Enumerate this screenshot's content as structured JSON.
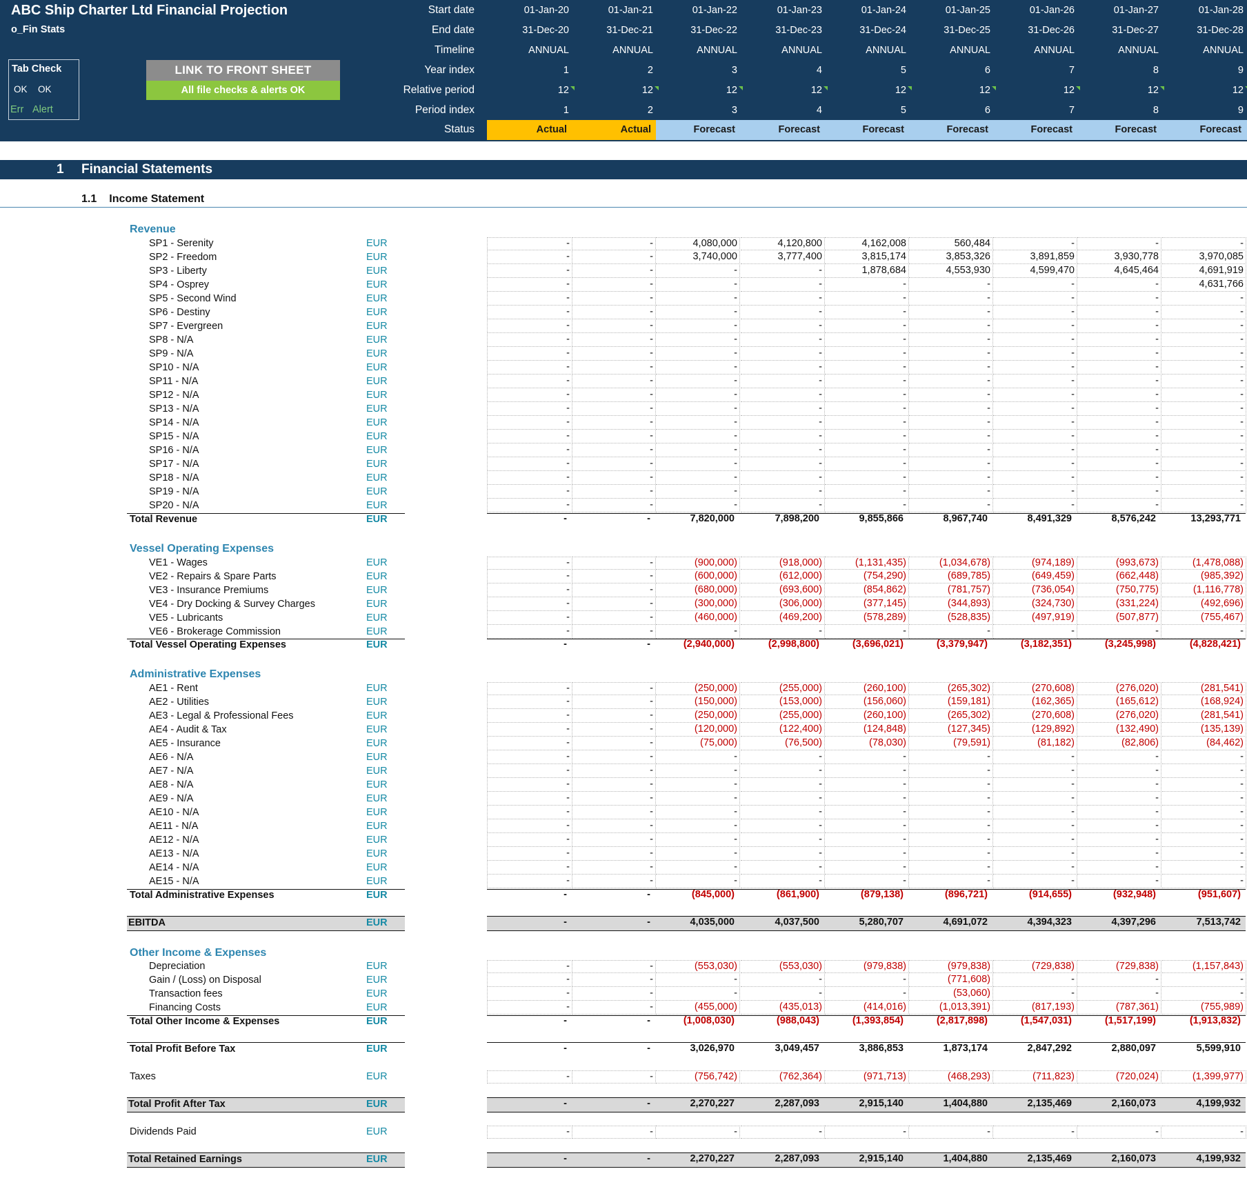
{
  "header": {
    "title": "ABC Ship Charter Ltd Financial Projection",
    "sheet": "o_Fin Stats",
    "tab_check": {
      "label": "Tab Check",
      "ok1": "OK",
      "ok2": "OK",
      "err": "Err",
      "alert": "Alert"
    },
    "link_button": "LINK TO FRONT SHEET",
    "checks_status": "All file checks & alerts OK",
    "row_labels": [
      "Start date",
      "End date",
      "Timeline",
      "Year index",
      "Relative period",
      "Period index",
      "Status"
    ],
    "columns": [
      {
        "start": "01-Jan-20",
        "end": "31-Dec-20",
        "timeline": "ANNUAL",
        "year_index": "1",
        "relative_period": "12",
        "period_index": "1",
        "status": "Actual"
      },
      {
        "start": "01-Jan-21",
        "end": "31-Dec-21",
        "timeline": "ANNUAL",
        "year_index": "2",
        "relative_period": "12",
        "period_index": "2",
        "status": "Actual"
      },
      {
        "start": "01-Jan-22",
        "end": "31-Dec-22",
        "timeline": "ANNUAL",
        "year_index": "3",
        "relative_period": "12",
        "period_index": "3",
        "status": "Forecast"
      },
      {
        "start": "01-Jan-23",
        "end": "31-Dec-23",
        "timeline": "ANNUAL",
        "year_index": "4",
        "relative_period": "12",
        "period_index": "4",
        "status": "Forecast"
      },
      {
        "start": "01-Jan-24",
        "end": "31-Dec-24",
        "timeline": "ANNUAL",
        "year_index": "5",
        "relative_period": "12",
        "period_index": "5",
        "status": "Forecast"
      },
      {
        "start": "01-Jan-25",
        "end": "31-Dec-25",
        "timeline": "ANNUAL",
        "year_index": "6",
        "relative_period": "12",
        "period_index": "6",
        "status": "Forecast"
      },
      {
        "start": "01-Jan-26",
        "end": "31-Dec-26",
        "timeline": "ANNUAL",
        "year_index": "7",
        "relative_period": "12",
        "period_index": "7",
        "status": "Forecast"
      },
      {
        "start": "01-Jan-27",
        "end": "31-Dec-27",
        "timeline": "ANNUAL",
        "year_index": "8",
        "relative_period": "12",
        "period_index": "8",
        "status": "Forecast"
      },
      {
        "start": "01-Jan-28",
        "end": "31-Dec-28",
        "timeline": "ANNUAL",
        "year_index": "9",
        "relative_period": "12",
        "period_index": "9",
        "status": "Forecast"
      }
    ]
  },
  "colors": {
    "banner": "#173c5e",
    "actual": "#ffc000",
    "forecast": "#a9cfee",
    "negative": "#c00000",
    "group_title": "#2e86b0",
    "unit": "#168aa5"
  },
  "section": {
    "number": "1",
    "title": "Financial Statements"
  },
  "subsection": {
    "number": "1.1",
    "title": "Income Statement"
  },
  "groups": {
    "revenue": "Revenue",
    "vessel": "Vessel Operating Expenses",
    "admin": "Administrative Expenses",
    "other": "Other Income & Expenses"
  },
  "rows": [
    {
      "key": "sp1",
      "label": "SP1 - Serenity",
      "unit": "EUR",
      "type": "item",
      "values": [
        "-",
        "-",
        "4,080,000",
        "4,120,800",
        "4,162,008",
        "560,484",
        "-",
        "-",
        "-"
      ]
    },
    {
      "key": "sp2",
      "label": "SP2 - Freedom",
      "unit": "EUR",
      "type": "item",
      "values": [
        "-",
        "-",
        "3,740,000",
        "3,777,400",
        "3,815,174",
        "3,853,326",
        "3,891,859",
        "3,930,778",
        "3,970,085"
      ]
    },
    {
      "key": "sp3",
      "label": "SP3 - Liberty",
      "unit": "EUR",
      "type": "item",
      "values": [
        "-",
        "-",
        "-",
        "-",
        "1,878,684",
        "4,553,930",
        "4,599,470",
        "4,645,464",
        "4,691,919"
      ]
    },
    {
      "key": "sp4",
      "label": "SP4 - Osprey",
      "unit": "EUR",
      "type": "item",
      "values": [
        "-",
        "-",
        "-",
        "-",
        "-",
        "-",
        "-",
        "-",
        "4,631,766"
      ]
    },
    {
      "key": "sp5",
      "label": "SP5 - Second Wind",
      "unit": "EUR",
      "type": "item",
      "values": [
        "-",
        "-",
        "-",
        "-",
        "-",
        "-",
        "-",
        "-",
        "-"
      ]
    },
    {
      "key": "sp6",
      "label": "SP6 - Destiny",
      "unit": "EUR",
      "type": "item",
      "values": [
        "-",
        "-",
        "-",
        "-",
        "-",
        "-",
        "-",
        "-",
        "-"
      ]
    },
    {
      "key": "sp7",
      "label": "SP7 - Evergreen",
      "unit": "EUR",
      "type": "item",
      "values": [
        "-",
        "-",
        "-",
        "-",
        "-",
        "-",
        "-",
        "-",
        "-"
      ]
    },
    {
      "key": "sp8",
      "label": "SP8 - N/A",
      "unit": "EUR",
      "type": "item",
      "values": [
        "-",
        "-",
        "-",
        "-",
        "-",
        "-",
        "-",
        "-",
        "-"
      ]
    },
    {
      "key": "sp9",
      "label": "SP9 - N/A",
      "unit": "EUR",
      "type": "item",
      "values": [
        "-",
        "-",
        "-",
        "-",
        "-",
        "-",
        "-",
        "-",
        "-"
      ]
    },
    {
      "key": "sp10",
      "label": "SP10 - N/A",
      "unit": "EUR",
      "type": "item",
      "values": [
        "-",
        "-",
        "-",
        "-",
        "-",
        "-",
        "-",
        "-",
        "-"
      ]
    },
    {
      "key": "sp11",
      "label": "SP11 - N/A",
      "unit": "EUR",
      "type": "item",
      "values": [
        "-",
        "-",
        "-",
        "-",
        "-",
        "-",
        "-",
        "-",
        "-"
      ]
    },
    {
      "key": "sp12",
      "label": "SP12 - N/A",
      "unit": "EUR",
      "type": "item",
      "values": [
        "-",
        "-",
        "-",
        "-",
        "-",
        "-",
        "-",
        "-",
        "-"
      ]
    },
    {
      "key": "sp13",
      "label": "SP13 - N/A",
      "unit": "EUR",
      "type": "item",
      "values": [
        "-",
        "-",
        "-",
        "-",
        "-",
        "-",
        "-",
        "-",
        "-"
      ]
    },
    {
      "key": "sp14",
      "label": "SP14 - N/A",
      "unit": "EUR",
      "type": "item",
      "values": [
        "-",
        "-",
        "-",
        "-",
        "-",
        "-",
        "-",
        "-",
        "-"
      ]
    },
    {
      "key": "sp15",
      "label": "SP15 - N/A",
      "unit": "EUR",
      "type": "item",
      "values": [
        "-",
        "-",
        "-",
        "-",
        "-",
        "-",
        "-",
        "-",
        "-"
      ]
    },
    {
      "key": "sp16",
      "label": "SP16 - N/A",
      "unit": "EUR",
      "type": "item",
      "values": [
        "-",
        "-",
        "-",
        "-",
        "-",
        "-",
        "-",
        "-",
        "-"
      ]
    },
    {
      "key": "sp17",
      "label": "SP17 - N/A",
      "unit": "EUR",
      "type": "item",
      "values": [
        "-",
        "-",
        "-",
        "-",
        "-",
        "-",
        "-",
        "-",
        "-"
      ]
    },
    {
      "key": "sp18",
      "label": "SP18 - N/A",
      "unit": "EUR",
      "type": "item",
      "values": [
        "-",
        "-",
        "-",
        "-",
        "-",
        "-",
        "-",
        "-",
        "-"
      ]
    },
    {
      "key": "sp19",
      "label": "SP19 - N/A",
      "unit": "EUR",
      "type": "item",
      "values": [
        "-",
        "-",
        "-",
        "-",
        "-",
        "-",
        "-",
        "-",
        "-"
      ]
    },
    {
      "key": "sp20",
      "label": "SP20 - N/A",
      "unit": "EUR",
      "type": "item",
      "values": [
        "-",
        "-",
        "-",
        "-",
        "-",
        "-",
        "-",
        "-",
        "-"
      ]
    },
    {
      "key": "total_revenue",
      "label": "Total Revenue",
      "unit": "EUR",
      "type": "total",
      "values": [
        "-",
        "-",
        "7,820,000",
        "7,898,200",
        "9,855,866",
        "8,967,740",
        "8,491,329",
        "8,576,242",
        "13,293,771"
      ]
    },
    {
      "key": "ve1",
      "label": "VE1 - Wages",
      "unit": "EUR",
      "type": "item",
      "values": [
        "-",
        "-",
        "(900,000)",
        "(918,000)",
        "(1,131,435)",
        "(1,034,678)",
        "(974,189)",
        "(993,673)",
        "(1,478,088)"
      ]
    },
    {
      "key": "ve2",
      "label": "VE2 - Repairs & Spare Parts",
      "unit": "EUR",
      "type": "item",
      "values": [
        "-",
        "-",
        "(600,000)",
        "(612,000)",
        "(754,290)",
        "(689,785)",
        "(649,459)",
        "(662,448)",
        "(985,392)"
      ]
    },
    {
      "key": "ve3",
      "label": "VE3 - Insurance Premiums",
      "unit": "EUR",
      "type": "item",
      "values": [
        "-",
        "-",
        "(680,000)",
        "(693,600)",
        "(854,862)",
        "(781,757)",
        "(736,054)",
        "(750,775)",
        "(1,116,778)"
      ]
    },
    {
      "key": "ve4",
      "label": "VE4 - Dry Docking & Survey Charges",
      "unit": "EUR",
      "type": "item",
      "values": [
        "-",
        "-",
        "(300,000)",
        "(306,000)",
        "(377,145)",
        "(344,893)",
        "(324,730)",
        "(331,224)",
        "(492,696)"
      ]
    },
    {
      "key": "ve5",
      "label": "VE5 - Lubricants",
      "unit": "EUR",
      "type": "item",
      "values": [
        "-",
        "-",
        "(460,000)",
        "(469,200)",
        "(578,289)",
        "(528,835)",
        "(497,919)",
        "(507,877)",
        "(755,467)"
      ]
    },
    {
      "key": "ve6",
      "label": "VE6 - Brokerage Commission",
      "unit": "EUR",
      "type": "item",
      "values": [
        "-",
        "-",
        "-",
        "-",
        "-",
        "-",
        "-",
        "-",
        "-"
      ]
    },
    {
      "key": "total_vessel",
      "label": "Total Vessel Operating Expenses",
      "unit": "EUR",
      "type": "total",
      "values": [
        "-",
        "-",
        "(2,940,000)",
        "(2,998,800)",
        "(3,696,021)",
        "(3,379,947)",
        "(3,182,351)",
        "(3,245,998)",
        "(4,828,421)"
      ]
    },
    {
      "key": "ae1",
      "label": "AE1 - Rent",
      "unit": "EUR",
      "type": "item",
      "values": [
        "-",
        "-",
        "(250,000)",
        "(255,000)",
        "(260,100)",
        "(265,302)",
        "(270,608)",
        "(276,020)",
        "(281,541)"
      ]
    },
    {
      "key": "ae2",
      "label": "AE2 - Utilities",
      "unit": "EUR",
      "type": "item",
      "values": [
        "-",
        "-",
        "(150,000)",
        "(153,000)",
        "(156,060)",
        "(159,181)",
        "(162,365)",
        "(165,612)",
        "(168,924)"
      ]
    },
    {
      "key": "ae3",
      "label": "AE3 - Legal & Professional Fees",
      "unit": "EUR",
      "type": "item",
      "values": [
        "-",
        "-",
        "(250,000)",
        "(255,000)",
        "(260,100)",
        "(265,302)",
        "(270,608)",
        "(276,020)",
        "(281,541)"
      ]
    },
    {
      "key": "ae4",
      "label": "AE4 - Audit & Tax",
      "unit": "EUR",
      "type": "item",
      "values": [
        "-",
        "-",
        "(120,000)",
        "(122,400)",
        "(124,848)",
        "(127,345)",
        "(129,892)",
        "(132,490)",
        "(135,139)"
      ]
    },
    {
      "key": "ae5",
      "label": "AE5 - Insurance",
      "unit": "EUR",
      "type": "item",
      "values": [
        "-",
        "-",
        "(75,000)",
        "(76,500)",
        "(78,030)",
        "(79,591)",
        "(81,182)",
        "(82,806)",
        "(84,462)"
      ]
    },
    {
      "key": "ae6",
      "label": "AE6 - N/A",
      "unit": "EUR",
      "type": "item",
      "values": [
        "-",
        "-",
        "-",
        "-",
        "-",
        "-",
        "-",
        "-",
        "-"
      ]
    },
    {
      "key": "ae7",
      "label": "AE7 - N/A",
      "unit": "EUR",
      "type": "item",
      "values": [
        "-",
        "-",
        "-",
        "-",
        "-",
        "-",
        "-",
        "-",
        "-"
      ]
    },
    {
      "key": "ae8",
      "label": "AE8 - N/A",
      "unit": "EUR",
      "type": "item",
      "values": [
        "-",
        "-",
        "-",
        "-",
        "-",
        "-",
        "-",
        "-",
        "-"
      ]
    },
    {
      "key": "ae9",
      "label": "AE9 - N/A",
      "unit": "EUR",
      "type": "item",
      "values": [
        "-",
        "-",
        "-",
        "-",
        "-",
        "-",
        "-",
        "-",
        "-"
      ]
    },
    {
      "key": "ae10",
      "label": "AE10 - N/A",
      "unit": "EUR",
      "type": "item",
      "values": [
        "-",
        "-",
        "-",
        "-",
        "-",
        "-",
        "-",
        "-",
        "-"
      ]
    },
    {
      "key": "ae11",
      "label": "AE11 - N/A",
      "unit": "EUR",
      "type": "item",
      "values": [
        "-",
        "-",
        "-",
        "-",
        "-",
        "-",
        "-",
        "-",
        "-"
      ]
    },
    {
      "key": "ae12",
      "label": "AE12 - N/A",
      "unit": "EUR",
      "type": "item",
      "values": [
        "-",
        "-",
        "-",
        "-",
        "-",
        "-",
        "-",
        "-",
        "-"
      ]
    },
    {
      "key": "ae13",
      "label": "AE13 - N/A",
      "unit": "EUR",
      "type": "item",
      "values": [
        "-",
        "-",
        "-",
        "-",
        "-",
        "-",
        "-",
        "-",
        "-"
      ]
    },
    {
      "key": "ae14",
      "label": "AE14 - N/A",
      "unit": "EUR",
      "type": "item",
      "values": [
        "-",
        "-",
        "-",
        "-",
        "-",
        "-",
        "-",
        "-",
        "-"
      ]
    },
    {
      "key": "ae15",
      "label": "AE15 - N/A",
      "unit": "EUR",
      "type": "item",
      "values": [
        "-",
        "-",
        "-",
        "-",
        "-",
        "-",
        "-",
        "-",
        "-"
      ]
    },
    {
      "key": "total_admin",
      "label": "Total Administrative Expenses",
      "unit": "EUR",
      "type": "total",
      "values": [
        "-",
        "-",
        "(845,000)",
        "(861,900)",
        "(879,138)",
        "(896,721)",
        "(914,655)",
        "(932,948)",
        "(951,607)"
      ]
    },
    {
      "key": "ebitda",
      "label": "EBITDA",
      "unit": "EUR",
      "type": "shaded",
      "values": [
        "-",
        "-",
        "4,035,000",
        "4,037,500",
        "5,280,707",
        "4,691,072",
        "4,394,323",
        "4,397,296",
        "7,513,742"
      ]
    },
    {
      "key": "depreciation",
      "label": "Depreciation",
      "unit": "EUR",
      "type": "item",
      "values": [
        "-",
        "-",
        "(553,030)",
        "(553,030)",
        "(979,838)",
        "(979,838)",
        "(729,838)",
        "(729,838)",
        "(1,157,843)"
      ]
    },
    {
      "key": "gain_loss",
      "label": "Gain / (Loss) on Disposal",
      "unit": "EUR",
      "type": "item",
      "values": [
        "-",
        "-",
        "-",
        "-",
        "-",
        "(771,608)",
        "-",
        "-",
        "-"
      ]
    },
    {
      "key": "transaction_fees",
      "label": "Transaction fees",
      "unit": "EUR",
      "type": "item",
      "values": [
        "-",
        "-",
        "-",
        "-",
        "-",
        "(53,060)",
        "-",
        "-",
        "-"
      ]
    },
    {
      "key": "financing_costs",
      "label": "Financing Costs",
      "unit": "EUR",
      "type": "item",
      "values": [
        "-",
        "-",
        "(455,000)",
        "(435,013)",
        "(414,016)",
        "(1,013,391)",
        "(817,193)",
        "(787,361)",
        "(755,989)"
      ]
    },
    {
      "key": "total_other",
      "label": "Total Other Income & Expenses",
      "unit": "EUR",
      "type": "total",
      "values": [
        "-",
        "-",
        "(1,008,030)",
        "(988,043)",
        "(1,393,854)",
        "(2,817,898)",
        "(1,547,031)",
        "(1,517,199)",
        "(1,913,832)"
      ]
    },
    {
      "key": "pbt",
      "label": "Total Profit Before Tax",
      "unit": "EUR",
      "type": "total",
      "values": [
        "-",
        "-",
        "3,026,970",
        "3,049,457",
        "3,886,853",
        "1,873,174",
        "2,847,292",
        "2,880,097",
        "5,599,910"
      ]
    },
    {
      "key": "taxes",
      "label": "Taxes",
      "unit": "EUR",
      "type": "main",
      "values": [
        "-",
        "-",
        "(756,742)",
        "(762,364)",
        "(971,713)",
        "(468,293)",
        "(711,823)",
        "(720,024)",
        "(1,399,977)"
      ]
    },
    {
      "key": "pat",
      "label": "Total Profit After Tax",
      "unit": "EUR",
      "type": "shaded",
      "values": [
        "-",
        "-",
        "2,270,227",
        "2,287,093",
        "2,915,140",
        "1,404,880",
        "2,135,469",
        "2,160,073",
        "4,199,932"
      ]
    },
    {
      "key": "dividends",
      "label": "Dividends Paid",
      "unit": "EUR",
      "type": "main",
      "values": [
        "-",
        "-",
        "-",
        "-",
        "-",
        "-",
        "-",
        "-",
        "-"
      ]
    },
    {
      "key": "retained",
      "label": "Total Retained Earnings",
      "unit": "EUR",
      "type": "shaded",
      "values": [
        "-",
        "-",
        "2,270,227",
        "2,287,093",
        "2,915,140",
        "1,404,880",
        "2,135,469",
        "2,160,073",
        "4,199,932"
      ]
    }
  ]
}
